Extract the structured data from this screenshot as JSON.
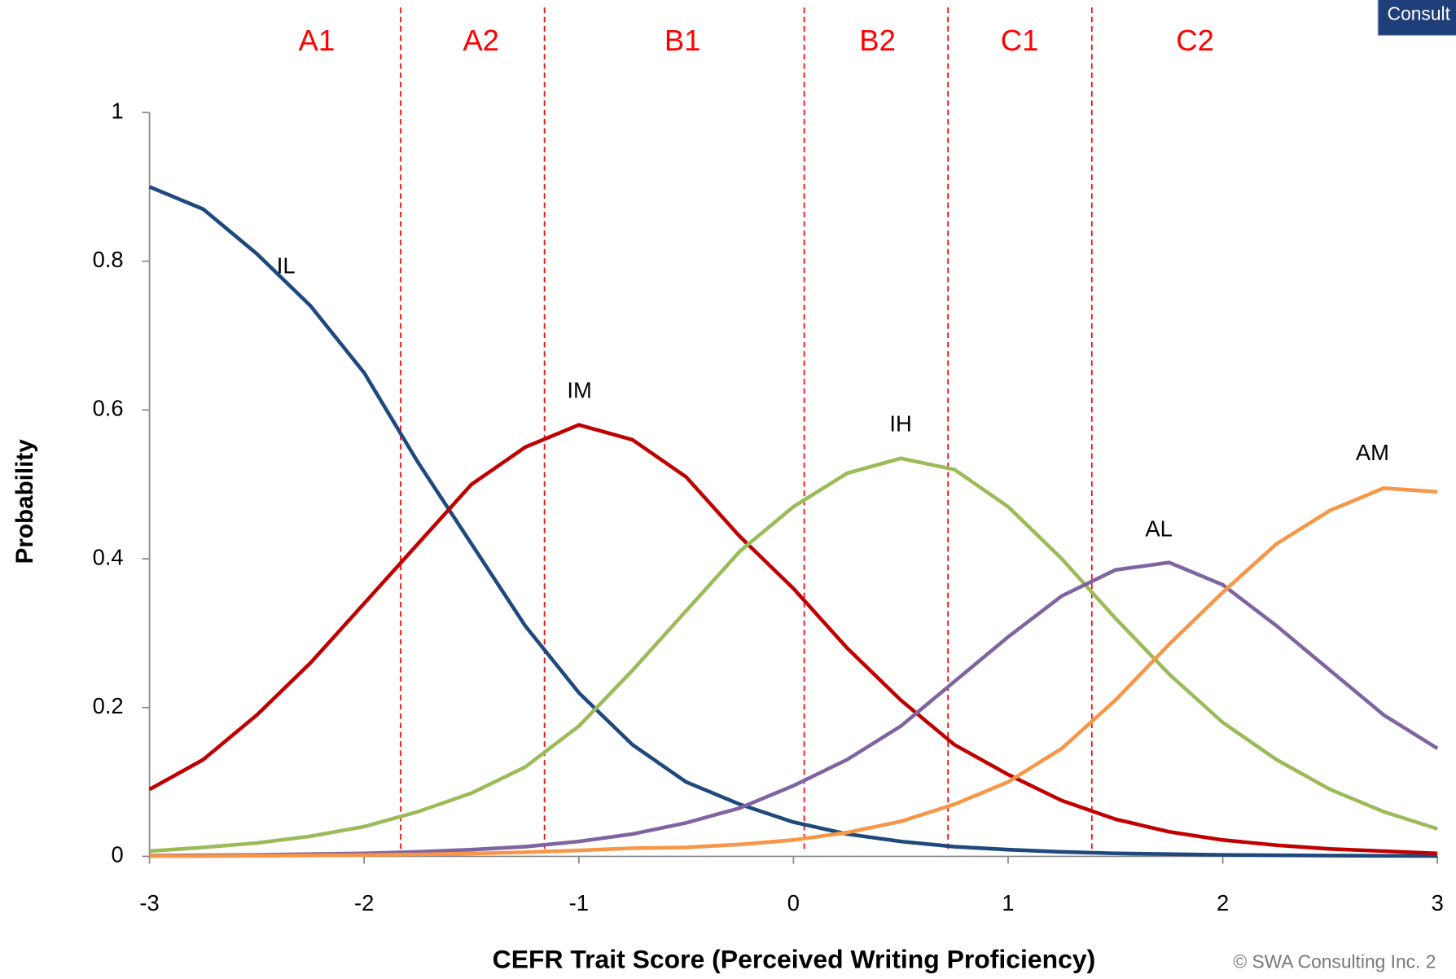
{
  "chart_data": {
    "type": "line",
    "xlabel": "CEFR Trait Score (Perceived Writing Proficiency)",
    "ylabel": "Probability",
    "x": [
      -3,
      -2.75,
      -2.5,
      -2.25,
      -2,
      -1.75,
      -1.5,
      -1.25,
      -1,
      -0.75,
      -0.5,
      -0.25,
      0,
      0.25,
      0.5,
      0.75,
      1,
      1.25,
      1.5,
      1.75,
      2,
      2.25,
      2.5,
      2.75,
      3
    ],
    "series": [
      {
        "name": "IL",
        "color": "#1f497d",
        "values": [
          0.9,
          0.87,
          0.81,
          0.74,
          0.65,
          0.53,
          0.42,
          0.31,
          0.22,
          0.15,
          0.1,
          0.07,
          0.046,
          0.03,
          0.02,
          0.013,
          0.009,
          0.006,
          0.004,
          0.003,
          0.002,
          0.0015,
          0.001,
          0.0007,
          0.0005
        ]
      },
      {
        "name": "IM",
        "color": "#c00000",
        "values": [
          0.09,
          0.13,
          0.19,
          0.26,
          0.34,
          0.42,
          0.5,
          0.55,
          0.58,
          0.56,
          0.51,
          0.43,
          0.36,
          0.28,
          0.21,
          0.15,
          0.11,
          0.075,
          0.05,
          0.033,
          0.022,
          0.015,
          0.01,
          0.007,
          0.004
        ]
      },
      {
        "name": "IH",
        "color": "#9bbb59",
        "values": [
          0.007,
          0.012,
          0.018,
          0.027,
          0.04,
          0.06,
          0.085,
          0.12,
          0.175,
          0.25,
          0.33,
          0.41,
          0.47,
          0.515,
          0.535,
          0.52,
          0.47,
          0.4,
          0.32,
          0.245,
          0.18,
          0.13,
          0.09,
          0.06,
          0.037
        ]
      },
      {
        "name": "AL",
        "color": "#8064a2",
        "values": [
          0.001,
          0.0015,
          0.002,
          0.003,
          0.004,
          0.006,
          0.009,
          0.013,
          0.02,
          0.03,
          0.045,
          0.065,
          0.095,
          0.13,
          0.175,
          0.235,
          0.295,
          0.35,
          0.385,
          0.395,
          0.365,
          0.31,
          0.25,
          0.19,
          0.145
        ]
      },
      {
        "name": "AM",
        "color": "#f79646",
        "values": [
          0.0003,
          0.0005,
          0.0008,
          0.0012,
          0.0018,
          0.0026,
          0.0038,
          0.0055,
          0.008,
          0.011,
          0.012,
          0.016,
          0.022,
          0.032,
          0.047,
          0.07,
          0.1,
          0.145,
          0.21,
          0.285,
          0.355,
          0.42,
          0.465,
          0.495,
          0.49
        ]
      }
    ],
    "cutpoints": [
      -1.83,
      -1.16,
      0.05,
      0.72,
      1.39
    ],
    "cutpoint_color": "#ff0000",
    "bands": [
      "A1",
      "A2",
      "B1",
      "B2",
      "C1",
      "C2"
    ],
    "xlim": [
      -3,
      3
    ],
    "xticks": [
      -3,
      -2,
      -1,
      0,
      1,
      2,
      3
    ],
    "ylim": [
      0,
      1
    ],
    "yticks": [
      0,
      0.2,
      0.4,
      0.6,
      0.8,
      1
    ]
  },
  "badge": "Consult",
  "footer": "© SWA Consulting Inc. 2"
}
